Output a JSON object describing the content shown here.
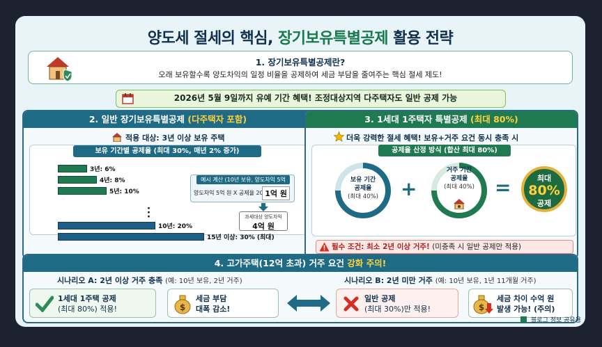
{
  "title": {
    "main": "양도세 절세의 핵심,",
    "accent": "장기보유특별공제",
    "tail": "활용 전략"
  },
  "section1": {
    "title": "1. 장기보유특별공제란?",
    "desc": "오래 보유할수록 양도차익의 일정 비율을 공제하여 세금 부담을 줄여주는 핵심 절세 제도!"
  },
  "notice": "2026년 5월 9일까지 유예 기간 혜택! 조정대상지역 다주택자도 일반 공제 가능",
  "section2": {
    "title": "2. 일반 장기보유특별공제",
    "title_hl": "(다주택자 포함)",
    "target": "적용 대상: 3년 이상 보유 주택",
    "chart_title": "보유 기간별 공제율 (최대 30%, 매년 2% 증가)",
    "example": {
      "title": "예시 계산 (10년 보유, 양도차익 5억 원)",
      "formula": "양도차익 5억 원 X 공제율 20% =",
      "result": "1억 원",
      "tax_label": "과세대상 양도차익",
      "tax_value": "4억 원"
    }
  },
  "chart_data": {
    "type": "bar",
    "categories": [
      "3년",
      "4년",
      "5년",
      "10년",
      "15년 이상"
    ],
    "values": [
      6,
      8,
      10,
      20,
      30
    ],
    "labels": [
      "3년: 6%",
      "4년: 8%",
      "5년: 10%",
      "10년: 20%",
      "15년 이상: 30% (최대)"
    ],
    "title": "보유 기간별 공제율 (최대 30%, 매년 2% 증가)",
    "xlabel": "",
    "ylabel": "",
    "xlim": [
      0,
      30
    ]
  },
  "section3": {
    "title": "3. 1세대 1주택자 특별공제",
    "title_hl": "(최대 80%)",
    "subtitle": "더욱 강력한 절세 혜택! 보유+거주 요건 동시 충족 시",
    "method": "공제율 산정 방식 (합산 최대 80%)",
    "holding": {
      "l1": "보유 기간",
      "l2": "공제율",
      "l3": "(최대 40%)"
    },
    "residence": {
      "l1": "거주 기간",
      "l2": "공제율",
      "l3": "(최대 40%)"
    },
    "result": {
      "l1": "최대",
      "l2": "80%",
      "l3": "공제"
    },
    "warn_bold": "필수 조건: 최소 2년 이상 거주!",
    "warn_rest": "(미충족 시 일반 공제만 적용)"
  },
  "section4": {
    "title_main": "4. 고가주택(12억 초과) 거주 요건",
    "title_hl": "강화 주의!",
    "scenA": {
      "title": "시나리오 A: 2년 이상 거주 충족",
      "detail": "(예: 10년 보유, 2년 거주)"
    },
    "scenB": {
      "title": "시나리오 B: 2년 미만 거주",
      "detail": "(예: 10년 보유, 1년 11개월 거주)"
    },
    "boxA1": {
      "l1": "1세대 1주택 공제",
      "l2": "(최대 80%) 적용!"
    },
    "boxA2": {
      "l1": "세금 부담",
      "l2": "대폭 감소!"
    },
    "boxB1": {
      "l1": "일반 공제",
      "l2": "(최대 30%)만 적용!"
    },
    "boxB2": {
      "l1": "세금 차이 수억 원",
      "l2": "발생 가능! (주의)"
    }
  },
  "footer": "블로그 정보 공유용",
  "colors": {
    "navy": "#10304d",
    "green": "#1f7a52",
    "blue": "#1f6b86",
    "yellow": "#ffd23c",
    "red": "#b11e1e"
  }
}
